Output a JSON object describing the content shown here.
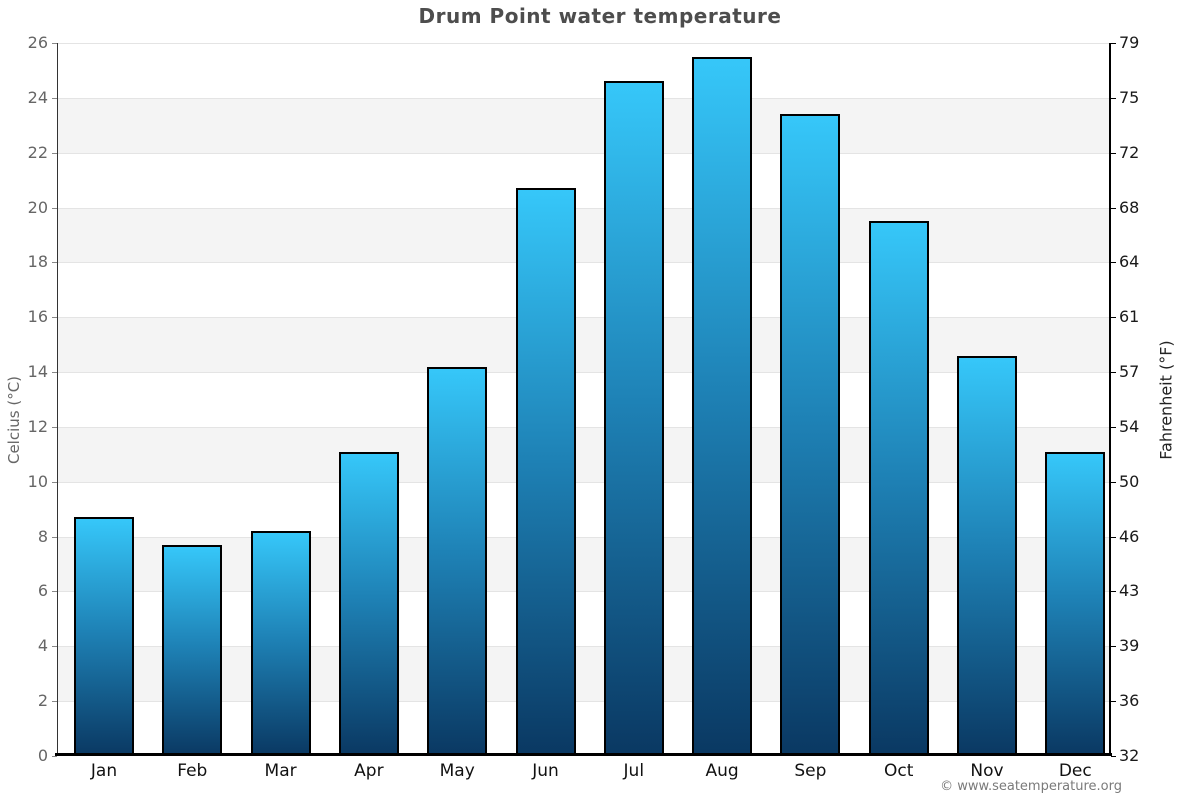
{
  "footer": {
    "credit": "© www.seatemperature.org"
  },
  "chart_data": {
    "type": "bar",
    "title": "Drum Point water temperature",
    "categories": [
      "Jan",
      "Feb",
      "Mar",
      "Apr",
      "May",
      "Jun",
      "Jul",
      "Aug",
      "Sep",
      "Oct",
      "Nov",
      "Dec"
    ],
    "series": [
      {
        "name": "Water temperature (°C)",
        "values": [
          8.7,
          7.7,
          8.2,
          11.1,
          14.2,
          20.7,
          24.6,
          25.5,
          23.4,
          19.5,
          14.6,
          11.1
        ]
      }
    ],
    "values": [
      8.7,
      7.7,
      8.2,
      11.1,
      14.2,
      20.7,
      24.6,
      25.5,
      23.4,
      19.5,
      14.6,
      11.1
    ],
    "xlabel": "",
    "ylabel_left": "Celcius (°C)",
    "ylabel_right": "Fahrenheit (°F)",
    "ylim": [
      0,
      26
    ],
    "yticks_celsius": [
      0,
      2,
      4,
      6,
      8,
      10,
      12,
      14,
      16,
      18,
      20,
      22,
      24,
      26
    ],
    "yticks_fahrenheit": [
      32,
      36,
      39,
      43,
      46,
      50,
      54,
      57,
      61,
      64,
      68,
      72,
      75,
      79
    ],
    "grid": "alternating horizontal bands every 2°C",
    "legend": "none",
    "colors": {
      "bar_gradient_top": "#36c7f9",
      "bar_gradient_mid": "#1e81b5",
      "bar_gradient_bottom": "#0a3862",
      "bar_border": "#000000",
      "band_light": "#ffffff",
      "band_shaded": "#f4f4f4",
      "title_text": "#4d4d4d",
      "left_tick_text": "#666666",
      "right_tick_text": "#1a1a1a"
    }
  }
}
